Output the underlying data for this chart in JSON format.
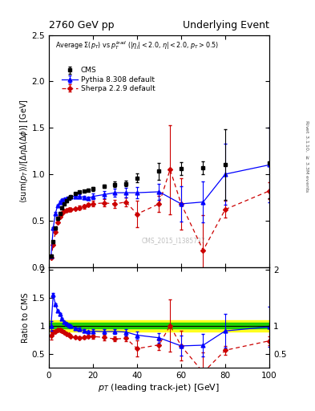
{
  "title_left": "2760 GeV pp",
  "title_right": "Underlying Event",
  "plot_title": "Average $\\Sigma(p_T)$ vs $p_T^{lead}$ ($|\\eta_j|$<2.0, $\\eta|$<2.0, $p_T$>0.5)",
  "xlabel": "$p_T$ (leading track-jet) [GeV]",
  "ylabel_main": "$\\langle$sum$(p_T)\\rangle$/$[\\Delta\\eta\\Delta(\\Delta\\phi)]$ [GeV]",
  "ylabel_ratio": "Ratio to CMS",
  "ylabel_right": "Rivet 3.1.10, $\\geq$ 3.3M events",
  "watermark": "CMS_2015_I1385737",
  "xlim": [
    0,
    100
  ],
  "ylim_main": [
    0,
    2.5
  ],
  "ylim_ratio": [
    0.25,
    2.05
  ],
  "cms_x": [
    1,
    2,
    3,
    4,
    5,
    6,
    7,
    8,
    9,
    10,
    12,
    14,
    16,
    18,
    20,
    25,
    30,
    35,
    40,
    50,
    60,
    70,
    80,
    100
  ],
  "cms_y": [
    0.12,
    0.27,
    0.42,
    0.52,
    0.58,
    0.64,
    0.68,
    0.71,
    0.74,
    0.76,
    0.79,
    0.81,
    0.82,
    0.83,
    0.84,
    0.87,
    0.89,
    0.9,
    0.96,
    1.03,
    1.06,
    1.07,
    1.1,
    1.12
  ],
  "cms_yerr": [
    0.01,
    0.01,
    0.01,
    0.01,
    0.01,
    0.01,
    0.01,
    0.01,
    0.01,
    0.01,
    0.01,
    0.01,
    0.01,
    0.01,
    0.02,
    0.02,
    0.03,
    0.03,
    0.05,
    0.09,
    0.07,
    0.07,
    0.38,
    0.38
  ],
  "pythia_x": [
    1,
    2,
    3,
    4,
    5,
    6,
    7,
    8,
    9,
    10,
    12,
    14,
    16,
    18,
    20,
    25,
    30,
    35,
    40,
    50,
    60,
    70,
    80,
    100
  ],
  "pythia_y": [
    0.12,
    0.42,
    0.58,
    0.66,
    0.7,
    0.72,
    0.73,
    0.74,
    0.75,
    0.76,
    0.76,
    0.76,
    0.75,
    0.74,
    0.76,
    0.78,
    0.8,
    0.8,
    0.8,
    0.81,
    0.68,
    0.7,
    1.0,
    1.1
  ],
  "pythia_yerr": [
    0.01,
    0.01,
    0.01,
    0.01,
    0.01,
    0.01,
    0.01,
    0.01,
    0.01,
    0.01,
    0.01,
    0.02,
    0.02,
    0.02,
    0.03,
    0.04,
    0.04,
    0.05,
    0.06,
    0.09,
    0.19,
    0.22,
    0.33,
    0.4
  ],
  "sherpa_x": [
    1,
    2,
    3,
    4,
    5,
    6,
    7,
    8,
    9,
    10,
    12,
    14,
    16,
    18,
    20,
    25,
    30,
    35,
    40,
    50,
    55,
    60,
    70,
    80,
    100
  ],
  "sherpa_y": [
    0.1,
    0.24,
    0.38,
    0.48,
    0.54,
    0.58,
    0.6,
    0.61,
    0.62,
    0.62,
    0.63,
    0.64,
    0.65,
    0.67,
    0.68,
    0.69,
    0.68,
    0.7,
    0.57,
    0.68,
    1.05,
    0.68,
    0.18,
    0.62,
    0.82
  ],
  "sherpa_yerr": [
    0.01,
    0.01,
    0.01,
    0.01,
    0.01,
    0.01,
    0.01,
    0.01,
    0.01,
    0.01,
    0.01,
    0.02,
    0.02,
    0.02,
    0.03,
    0.04,
    0.04,
    0.05,
    0.14,
    0.09,
    0.48,
    0.28,
    0.38,
    0.09,
    0.09
  ],
  "cms_color": "#000000",
  "pythia_color": "#0000ff",
  "sherpa_color": "#cc0000",
  "band_green_lo": 0.95,
  "band_green_hi": 1.05,
  "band_yellow_lo": 0.9,
  "band_yellow_hi": 1.1
}
